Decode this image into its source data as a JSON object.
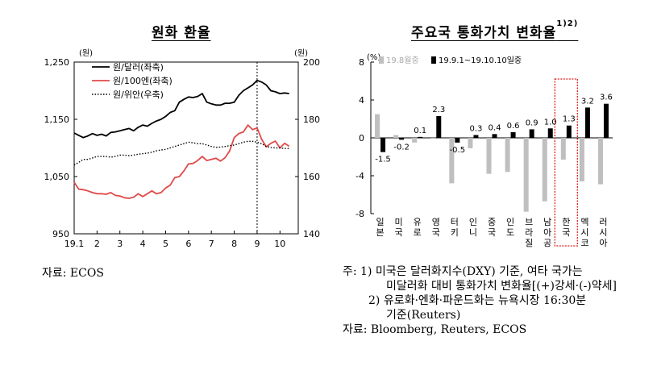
{
  "left": {
    "title": "원화 환율",
    "source": "자료: ECOS"
  },
  "right": {
    "title": "주요국 통화가치 변화율",
    "title_sup": "1)2)",
    "notes": [
      "주: 1) 미국은 달러화지수(DXY) 기준, 여타 국가는",
      "미달러화 대비 통화가치 변화율[(+)강세·(-)약세]",
      "2) 유로화·엔화·파운드화는 뉴욕시장 16:30분",
      "기준(Reuters)"
    ],
    "source": "자료: Bloomberg, Reuters, ECOS"
  },
  "chart_data": [
    {
      "type": "line",
      "title": "원화 환율",
      "left_axis": {
        "unit": "(원)",
        "ylim": [
          950,
          1250
        ],
        "ticks": [
          "950",
          "1,050",
          "1,150",
          "1,250"
        ]
      },
      "right_axis": {
        "unit": "(원)",
        "ylim": [
          140,
          200
        ],
        "ticks": [
          "140",
          "160",
          "180",
          "200"
        ]
      },
      "x_ticks": [
        "19.1",
        "2",
        "3",
        "4",
        "5",
        "6",
        "7",
        "8",
        "9",
        "10"
      ],
      "xlim": [
        1,
        10.8
      ],
      "vline_at": 9,
      "grid": false,
      "legend_position": "top-left",
      "colors": {
        "usd": "#000000",
        "jpy": "#e04a4a",
        "cny": "#000000"
      },
      "series": [
        {
          "name": "원/달러(좌축)",
          "axis": "left",
          "style": "solid",
          "x": [
            1.0,
            1.2,
            1.4,
            1.6,
            1.8,
            2.0,
            2.2,
            2.4,
            2.6,
            2.8,
            3.0,
            3.2,
            3.4,
            3.6,
            3.8,
            4.0,
            4.2,
            4.4,
            4.6,
            4.8,
            5.0,
            5.2,
            5.4,
            5.6,
            5.8,
            6.0,
            6.2,
            6.4,
            6.6,
            6.8,
            7.0,
            7.2,
            7.4,
            7.6,
            7.8,
            8.0,
            8.2,
            8.4,
            8.6,
            8.8,
            9.0,
            9.2,
            9.4,
            9.6,
            9.8,
            10.0,
            10.2,
            10.4
          ],
          "y": [
            1126,
            1122,
            1118,
            1121,
            1125,
            1122,
            1124,
            1121,
            1127,
            1128,
            1130,
            1132,
            1134,
            1130,
            1136,
            1140,
            1138,
            1143,
            1147,
            1150,
            1155,
            1162,
            1165,
            1180,
            1185,
            1189,
            1188,
            1190,
            1195,
            1180,
            1177,
            1175,
            1175,
            1178,
            1178,
            1180,
            1192,
            1200,
            1205,
            1210,
            1218,
            1215,
            1210,
            1200,
            1198,
            1195,
            1196,
            1195
          ]
        },
        {
          "name": "원/100엔(좌축)",
          "axis": "left",
          "style": "solid",
          "x": [
            1.0,
            1.2,
            1.4,
            1.6,
            1.8,
            2.0,
            2.2,
            2.4,
            2.6,
            2.8,
            3.0,
            3.2,
            3.4,
            3.6,
            3.8,
            4.0,
            4.2,
            4.4,
            4.6,
            4.8,
            5.0,
            5.2,
            5.4,
            5.6,
            5.8,
            6.0,
            6.2,
            6.4,
            6.6,
            6.8,
            7.0,
            7.2,
            7.4,
            7.6,
            7.8,
            8.0,
            8.2,
            8.4,
            8.6,
            8.8,
            9.0,
            9.2,
            9.4,
            9.6,
            9.8,
            10.0,
            10.2,
            10.4
          ],
          "y": [
            1040,
            1028,
            1027,
            1025,
            1022,
            1020,
            1020,
            1019,
            1022,
            1017,
            1016,
            1013,
            1012,
            1014,
            1020,
            1015,
            1020,
            1025,
            1020,
            1022,
            1030,
            1035,
            1048,
            1050,
            1060,
            1072,
            1073,
            1078,
            1085,
            1078,
            1080,
            1082,
            1077,
            1083,
            1095,
            1118,
            1125,
            1128,
            1140,
            1132,
            1135,
            1115,
            1102,
            1108,
            1112,
            1100,
            1108,
            1103
          ]
        },
        {
          "name": "원/위안(우축)",
          "axis": "right",
          "style": "dotted",
          "x": [
            1.0,
            1.2,
            1.4,
            1.6,
            1.8,
            2.0,
            2.2,
            2.4,
            2.6,
            2.8,
            3.0,
            3.2,
            3.4,
            3.6,
            3.8,
            4.0,
            4.2,
            4.4,
            4.6,
            4.8,
            5.0,
            5.2,
            5.4,
            5.6,
            5.8,
            6.0,
            6.2,
            6.4,
            6.6,
            6.8,
            7.0,
            7.2,
            7.4,
            7.6,
            7.8,
            8.0,
            8.2,
            8.4,
            8.6,
            8.8,
            9.0,
            9.2,
            9.4,
            9.6,
            9.8,
            10.0,
            10.2,
            10.4
          ],
          "y": [
            164,
            165,
            166,
            166,
            166.5,
            167,
            167,
            167,
            166.8,
            167,
            167.5,
            167.5,
            167.3,
            167.5,
            167.8,
            168,
            168.2,
            168.5,
            169,
            169.3,
            169.5,
            170,
            170.5,
            171,
            171.5,
            172,
            171.8,
            171.5,
            171.5,
            171,
            170.5,
            170.2,
            170.3,
            170.5,
            170.8,
            171,
            171.5,
            172,
            172.3,
            172.3,
            172,
            171.5,
            170.5,
            170.2,
            170,
            170,
            169.8,
            169.8
          ]
        }
      ]
    },
    {
      "type": "bar",
      "title": "주요국 통화가치 변화율",
      "y_unit": "(%)",
      "ylim": [
        -8,
        8
      ],
      "y_ticks": [
        "-8",
        "-4",
        "0",
        "4",
        "8"
      ],
      "grid": false,
      "legend_position": "top-left",
      "colors": {
        "gray": "#bfbfbf",
        "black": "#000000",
        "highlight": "#e02020"
      },
      "categories": [
        "일본",
        "미국",
        "유로",
        "영국",
        "터키",
        "인니",
        "중국",
        "인도",
        "브라질",
        "남아공",
        "한국",
        "멕시코",
        "러시아"
      ],
      "highlight_category": "한국",
      "series": [
        {
          "name": "19.8월중",
          "values": [
            2.5,
            0.3,
            -0.5,
            -0.1,
            -4.8,
            -1.1,
            -3.8,
            -3.6,
            -7.8,
            -6.7,
            -2.3,
            -4.6,
            -4.9
          ]
        },
        {
          "name": "19.9.1~19.10.10일중",
          "values": [
            -1.5,
            -0.2,
            0.1,
            2.3,
            -0.5,
            0.3,
            0.4,
            0.6,
            0.9,
            1.0,
            1.3,
            3.2,
            3.6
          ]
        }
      ],
      "value_labels": [
        "-1.5",
        "-0.2",
        "0.1",
        "2.3",
        "-0.5",
        "0.3",
        "0.4",
        "0.6",
        "0.9",
        "1.0",
        "1.3",
        "3.2",
        "3.6"
      ]
    }
  ]
}
